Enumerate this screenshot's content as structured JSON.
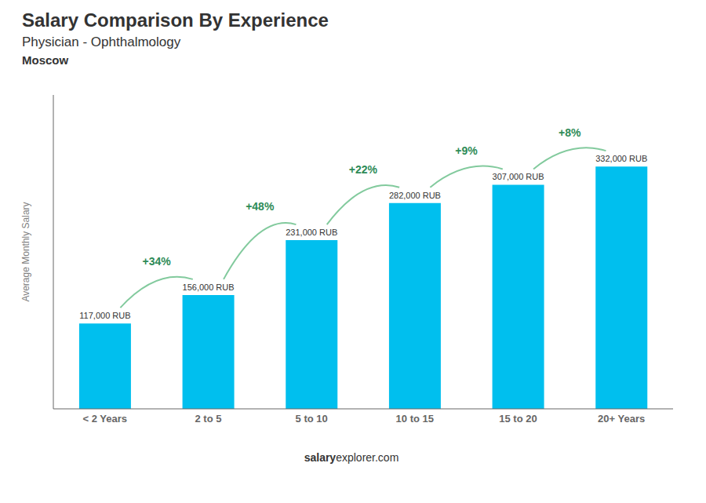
{
  "chart_data": {
    "type": "bar",
    "title": "Salary Comparison By Experience",
    "subtitle": "Physician - Ophthalmology",
    "ylabel": "Average Monthly Salary",
    "categories": [
      "< 2 Years",
      "2 to 5",
      "5 to 10",
      "10 to 15",
      "15 to 20",
      "20+ Years"
    ],
    "values": [
      117000,
      156000,
      231000,
      282000,
      307000,
      332000
    ],
    "value_labels": [
      "117,000 RUB",
      "156,000 RUB",
      "231,000 RUB",
      "282,000 RUB",
      "307,000 RUB",
      "332,000 RUB"
    ],
    "data_labels": true,
    "color": "#00BFEE",
    "ylim": [
      0,
      430000
    ],
    "tick_labels": "x",
    "grid": false,
    "annotations": {
      "city": "Moscow",
      "changes": [
        "+34%",
        "+48%",
        "+22%",
        "+9%",
        "+8%"
      ],
      "footer": [
        "salary",
        "explorer.com"
      ]
    }
  }
}
